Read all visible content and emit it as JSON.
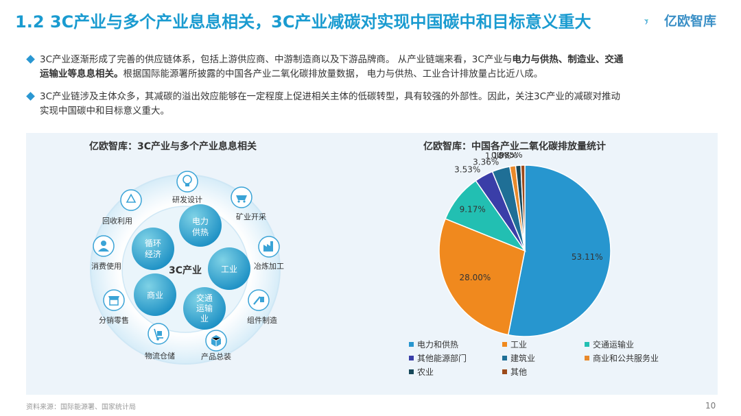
{
  "header": {
    "title": "1.2 3C产业与多个产业息息相关，3C产业减碳对实现中国碳中和目标意义重大",
    "logo_text": "亿欧智库"
  },
  "bullets": [
    {
      "line1_a": "3C产业逐渐形成了完善的供应链体系，包括上游供应商、中游制造商以及下游品牌商。 从产业链端来看，3C产业与",
      "line1_bold": "电力与供热、制造业、交通",
      "line2_bold": "运输业等息息相关。",
      "line2_rest": "根据国际能源署所披露的中国各产业二氧化碳排放量数据， 电力与供热、工业合计排放量占比近八成。"
    },
    {
      "line1": "3C产业链涉及主体众多，其减碳的溢出效应能够在一定程度上促进相关主体的低碳转型，具有较强的外部性。因此，关注3C产业的减碳对推动",
      "line2": "实现中国碳中和目标意义重大。"
    }
  ],
  "diagram": {
    "title": "亿欧智库：3C产业与多个产业息息相关",
    "center": "3C产业",
    "inner": [
      {
        "label1": "电力",
        "label2": "供热",
        "label3": ""
      },
      {
        "label1": "工业",
        "label2": "",
        "label3": ""
      },
      {
        "label1": "交通",
        "label2": "运输",
        "label3": "业"
      },
      {
        "label1": "商业",
        "label2": "",
        "label3": ""
      },
      {
        "label1": "循环",
        "label2": "经济",
        "label3": ""
      }
    ],
    "outer": [
      {
        "label": "研发设计",
        "icon": "lightbulb-icon"
      },
      {
        "label": "矿业开采",
        "icon": "mine-cart-icon"
      },
      {
        "label": "冶炼加工",
        "icon": "factory-icon"
      },
      {
        "label": "组件制造",
        "icon": "tools-icon"
      },
      {
        "label": "产品总装",
        "icon": "box-icon"
      },
      {
        "label": "物流仓储",
        "icon": "hand-truck-icon"
      },
      {
        "label": "分销零售",
        "icon": "store-icon"
      },
      {
        "label": "消费使用",
        "icon": "user-icon"
      },
      {
        "label": "回收利用",
        "icon": "recycle-icon"
      }
    ]
  },
  "chart_data": {
    "type": "pie",
    "title": "亿欧智库：中国各产业二氧化碳排放量统计",
    "categories": [
      "电力和供热",
      "工业",
      "交通运输业",
      "其他能源部门",
      "建筑业",
      "商业和公共服务业",
      "农业",
      "其他"
    ],
    "values": [
      53.11,
      28.0,
      9.17,
      3.53,
      3.36,
      1.1,
      0.98,
      0.75
    ],
    "labels": [
      "53.11%",
      "28.00%",
      "9.17%",
      "3.53%",
      "3.36%",
      "1.10%",
      "0.98%",
      "0.75%"
    ],
    "colors": [
      "#2796cf",
      "#f0891e",
      "#22bfb2",
      "#3a3ea8",
      "#1f6f96",
      "#e8892b",
      "#17485a",
      "#9c4a1a"
    ],
    "legend_position": "bottom"
  },
  "footer": {
    "source": "资料来源：国际能源署、国家统计局",
    "page": "10"
  }
}
